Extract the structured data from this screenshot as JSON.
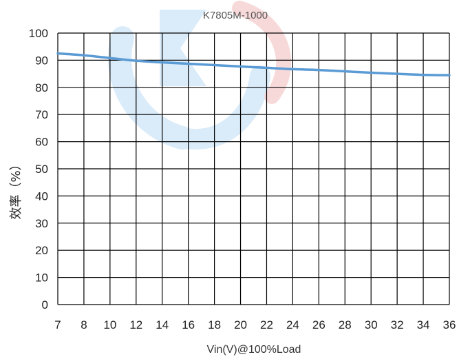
{
  "chart_data": {
    "type": "line",
    "title": "K7805M-1000",
    "xlabel": "Vin(V)@100%Load",
    "ylabel": "效率（%）",
    "x_categories": [
      "7",
      "8",
      "10",
      "12",
      "14",
      "16",
      "18",
      "20",
      "22",
      "24",
      "26",
      "28",
      "30",
      "32",
      "34",
      "36"
    ],
    "y_ticks": [
      "0",
      "10",
      "20",
      "30",
      "40",
      "50",
      "60",
      "70",
      "80",
      "90",
      "100"
    ],
    "ylim": [
      0,
      100
    ],
    "grid": true,
    "series": [
      {
        "values": [
          92.5,
          91.8,
          90.8,
          89.8,
          89.2,
          88.7,
          88.2,
          87.7,
          87.2,
          86.7,
          86.4,
          85.9,
          85.4,
          85.0,
          84.6,
          84.5
        ],
        "color": "#5b9bd5"
      }
    ]
  }
}
